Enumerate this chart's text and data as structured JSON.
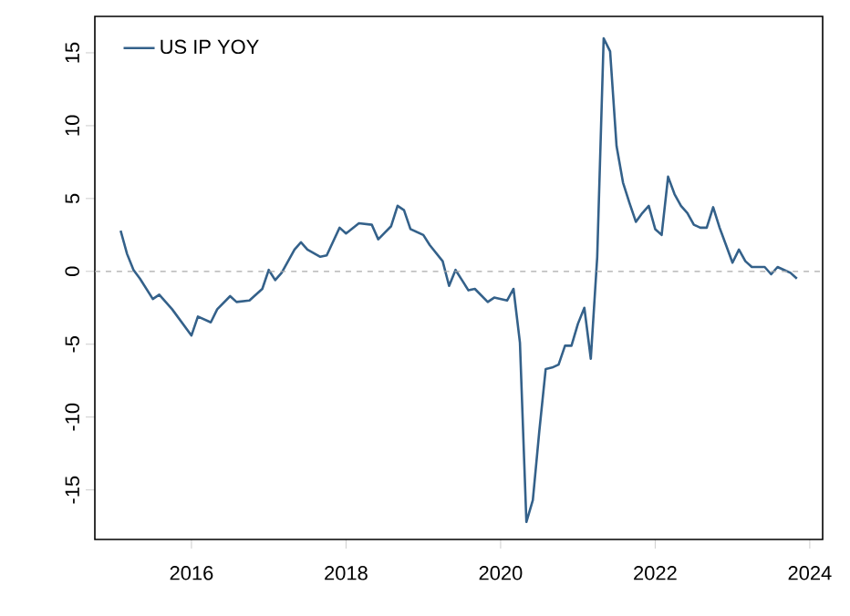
{
  "chart_data": {
    "type": "line",
    "x": [
      "2015-02",
      "2015-03",
      "2015-04",
      "2015-05",
      "2015-07",
      "2015-08",
      "2015-10",
      "2016-01",
      "2016-02",
      "2016-04",
      "2016-05",
      "2016-07",
      "2016-08",
      "2016-10",
      "2016-12",
      "2017-01",
      "2017-02",
      "2017-03",
      "2017-05",
      "2017-06",
      "2017-07",
      "2017-09",
      "2017-10",
      "2017-12",
      "2018-01",
      "2018-03",
      "2018-05",
      "2018-06",
      "2018-08",
      "2018-09",
      "2018-10",
      "2018-11",
      "2019-01",
      "2019-02",
      "2019-04",
      "2019-05",
      "2019-06",
      "2019-07",
      "2019-08",
      "2019-09",
      "2019-11",
      "2019-12",
      "2020-02",
      "2020-03",
      "2020-04",
      "2020-05",
      "2020-06",
      "2020-07",
      "2020-08",
      "2020-09",
      "2020-10",
      "2020-11",
      "2020-12",
      "2021-01",
      "2021-02",
      "2021-03",
      "2021-04",
      "2021-05",
      "2021-06",
      "2021-07",
      "2021-08",
      "2021-09",
      "2021-10",
      "2021-11",
      "2021-12",
      "2022-01",
      "2022-02",
      "2022-03",
      "2022-04",
      "2022-05",
      "2022-06",
      "2022-07",
      "2022-08",
      "2022-09",
      "2022-10",
      "2022-11",
      "2022-12",
      "2023-01",
      "2023-02",
      "2023-03",
      "2023-04",
      "2023-05",
      "2023-06",
      "2023-07",
      "2023-08",
      "2023-09",
      "2023-10",
      "2023-11"
    ],
    "series": [
      {
        "name": "US IP YOY",
        "color": "#34618a",
        "values": [
          2.8,
          1.2,
          0.1,
          -0.5,
          -1.9,
          -1.6,
          -2.6,
          -4.4,
          -3.1,
          -3.5,
          -2.6,
          -1.7,
          -2.1,
          -2.0,
          -1.2,
          0.1,
          -0.6,
          -0.1,
          1.5,
          2.0,
          1.5,
          1.0,
          1.1,
          3.0,
          2.6,
          3.3,
          3.2,
          2.2,
          3.1,
          4.5,
          4.2,
          2.9,
          2.5,
          1.8,
          0.7,
          -1.0,
          0.1,
          -0.6,
          -1.3,
          -1.2,
          -2.1,
          -1.8,
          -2.0,
          -1.2,
          -4.9,
          -17.2,
          -15.7,
          -11.0,
          -6.7,
          -6.6,
          -6.4,
          -5.1,
          -5.1,
          -3.6,
          -2.5,
          -6.0,
          1.0,
          16.0,
          15.1,
          8.6,
          6.1,
          4.7,
          3.4,
          4.0,
          4.5,
          2.9,
          2.5,
          6.5,
          5.3,
          4.5,
          4.0,
          3.2,
          3.0,
          3.0,
          4.4,
          3.0,
          1.8,
          0.6,
          1.5,
          0.7,
          0.3,
          0.3,
          0.3,
          -0.2,
          0.3,
          0.1,
          -0.1,
          -0.5
        ]
      }
    ],
    "xlim": [
      "2014-10",
      "2024-03"
    ],
    "xticks": [
      "2016",
      "2018",
      "2020",
      "2022",
      "2024"
    ],
    "ylim": [
      -18.4,
      17.5
    ],
    "yticks": [
      -15,
      -10,
      -5,
      0,
      5,
      10,
      15
    ],
    "ref_lines": [
      {
        "axis": "y",
        "value": 0,
        "color": "#aaaaaa",
        "line_style": "dashed"
      }
    ],
    "legend": "top left",
    "grid": false,
    "line_style": "solid"
  }
}
